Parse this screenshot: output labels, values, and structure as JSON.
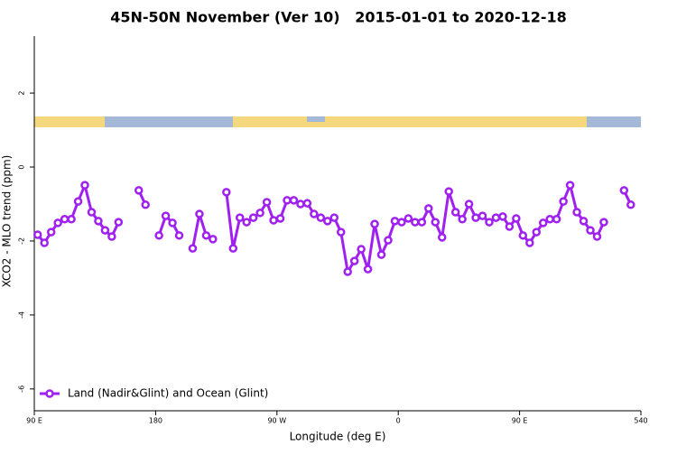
{
  "chart_data": {
    "type": "line",
    "title": "45N-50N November (Ver 10)   2015-01-01 to 2020-12-18",
    "x_label": "Longitude (deg E)",
    "y_label": "XCO2 - MLO trend (ppm)",
    "x": [
      92.5,
      97.5,
      102.5,
      107.5,
      112.5,
      117.5,
      122.5,
      127.5,
      132.5,
      137.5,
      142.5,
      147.5,
      152.5,
      157.5,
      162.5,
      167.5,
      172.5,
      177.5,
      182.5,
      187.5,
      192.5,
      197.5,
      202.5,
      207.5,
      212.5,
      217.5,
      222.5,
      227.5,
      232.5,
      237.5,
      242.5,
      247.5,
      252.5,
      257.5,
      262.5,
      267.5,
      272.5,
      277.5,
      282.5,
      287.5,
      292.5,
      297.5,
      302.5,
      307.5,
      312.5,
      317.5,
      322.5,
      327.5,
      332.5,
      337.5,
      342.5,
      347.5,
      352.5,
      357.5,
      362.5,
      367.5,
      372.5,
      377.5,
      382.5,
      387.5,
      392.5,
      397.5,
      402.5,
      407.5,
      412.5,
      417.5,
      422.5,
      427.5,
      432.5,
      437.5,
      442.5,
      447.5,
      452.5,
      457.5,
      462.5,
      467.5,
      472.5,
      477.5,
      482.5,
      487.5,
      492.5,
      497.5,
      502.5,
      507.5,
      512.5,
      517.5,
      522.5,
      527.5,
      532.5
    ],
    "series": [
      {
        "name": "Land (Nadir&Glint) and Ocean (Glint)",
        "color": "#a020f0",
        "values": [
          -1.83,
          -2.05,
          -1.76,
          -1.51,
          -1.41,
          -1.41,
          -0.93,
          -0.49,
          -1.22,
          -1.46,
          -1.71,
          -1.88,
          -1.49,
          null,
          null,
          -0.63,
          -1.02,
          null,
          -1.85,
          -1.32,
          -1.51,
          -1.85,
          null,
          -2.2,
          -1.27,
          -1.85,
          -1.95,
          null,
          -0.68,
          -2.2,
          -1.37,
          -1.49,
          -1.37,
          -1.24,
          -0.95,
          -1.44,
          -1.39,
          -0.9,
          -0.9,
          -1.0,
          -0.98,
          -1.27,
          -1.37,
          -1.46,
          -1.37,
          -1.76,
          -2.83,
          -2.54,
          -2.22,
          -2.76,
          -1.54,
          -2.37,
          -1.98,
          -1.46,
          -1.49,
          -1.39,
          -1.49,
          -1.49,
          -1.12,
          -1.49,
          -1.9,
          -0.66,
          -1.22,
          -1.41,
          -1.0,
          -1.37,
          -1.32,
          -1.49,
          -1.37,
          -1.34,
          -1.61,
          -1.39,
          -1.85,
          -2.05,
          -1.76,
          -1.51,
          -1.41,
          -1.41,
          -0.93,
          -0.49,
          -1.22,
          -1.46,
          -1.71,
          -1.88,
          -1.49,
          null,
          null,
          -0.63,
          -1.02
        ]
      }
    ],
    "xlim": [
      90,
      540
    ],
    "xticks": [
      {
        "value": 90,
        "label": "90 E"
      },
      180,
      {
        "value": 270,
        "label": "90 W"
      },
      {
        "value": 360,
        "label": "0"
      },
      {
        "value": 450,
        "label": "90 E"
      },
      540
    ],
    "ylim": [
      -6.59,
      3.54
    ],
    "yticks": [
      2,
      0,
      -2,
      -4,
      -6
    ],
    "legend": "bottom-left"
  }
}
